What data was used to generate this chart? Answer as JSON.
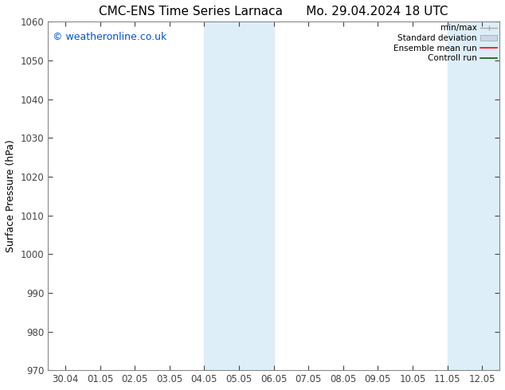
{
  "title_left": "CMC-ENS Time Series Larnaca",
  "title_right": "Mo. 29.04.2024 18 UTC",
  "ylabel": "Surface Pressure (hPa)",
  "ylim": [
    970,
    1060
  ],
  "yticks": [
    970,
    980,
    990,
    1000,
    1010,
    1020,
    1030,
    1040,
    1050,
    1060
  ],
  "xlabels": [
    "30.04",
    "01.05",
    "02.05",
    "03.05",
    "04.05",
    "05.05",
    "06.05",
    "07.05",
    "08.05",
    "09.05",
    "10.05",
    "11.05",
    "12.05"
  ],
  "x_positions": [
    0,
    1,
    2,
    3,
    4,
    5,
    6,
    7,
    8,
    9,
    10,
    11,
    12
  ],
  "shaded_bands": [
    {
      "xmin": 4,
      "xmax": 5,
      "color": "#ddeef8"
    },
    {
      "xmin": 5,
      "xmax": 6,
      "color": "#ddeef8"
    },
    {
      "xmin": 11,
      "xmax": 12,
      "color": "#ddeef8"
    },
    {
      "xmin": 12,
      "xmax": 12.5,
      "color": "#ddeef8"
    }
  ],
  "watermark_text": "© weatheronline.co.uk",
  "watermark_color": "#0055cc",
  "legend_entries": [
    {
      "label": "min/max",
      "color": "#aaaaaa"
    },
    {
      "label": "Standard deviation",
      "color": "#bbccdd"
    },
    {
      "label": "Ensemble mean run",
      "color": "red"
    },
    {
      "label": "Controll run",
      "color": "green"
    }
  ],
  "background_color": "#ffffff",
  "spine_color": "#888888",
  "tick_color": "#444444",
  "title_fontsize": 11,
  "axis_fontsize": 9,
  "tick_fontsize": 8.5,
  "watermark_fontsize": 9
}
